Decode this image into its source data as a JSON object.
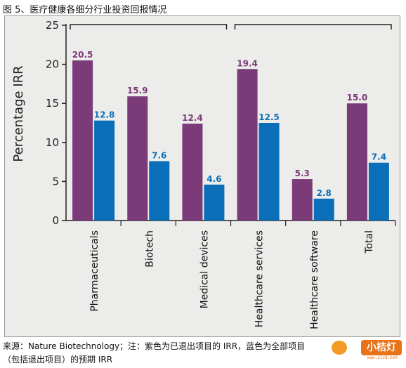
{
  "figure_title": "图 5、医疗健康各细分行业投资回报情况",
  "caption": "来源：Nature Biotechnology；注：紫色为已退出项目的 IRR，蓝色为全部项目（包括退出项目）的预期 IRR",
  "watermark": {
    "text": "小桔灯",
    "url": "www.iivd.net",
    "icon": "orange-logo-icon"
  },
  "colors": {
    "exited": "#7b3a78",
    "all": "#0a6fb8",
    "panel_bg": "#ececea",
    "axis": "#222222"
  },
  "chart_data": {
    "type": "bar",
    "ylabel": "Percentage IRR",
    "xlabel": "",
    "ylim": [
      0,
      25
    ],
    "yticks": [
      0,
      5,
      10,
      15,
      20,
      25
    ],
    "grid": false,
    "legend": "none",
    "categories": [
      "Pharmaceuticals",
      "Biotech",
      "Medical devices",
      "Healthcare services",
      "Healthcare software",
      "Total"
    ],
    "series": [
      {
        "values": [
          20.5,
          15.9,
          12.4,
          19.4,
          5.3,
          15.0
        ],
        "labels": [
          "20.5",
          "15.9",
          "12.4",
          "19.4",
          "5.3",
          "15.0"
        ]
      },
      {
        "values": [
          12.8,
          7.6,
          4.6,
          12.5,
          2.8,
          7.4
        ],
        "labels": [
          "12.8",
          "7.6",
          "4.6",
          "12.5",
          "2.8",
          "7.4"
        ]
      }
    ],
    "group_brackets": [
      {
        "from": 0,
        "to": 2
      },
      {
        "from": 3,
        "to": 5
      }
    ]
  }
}
